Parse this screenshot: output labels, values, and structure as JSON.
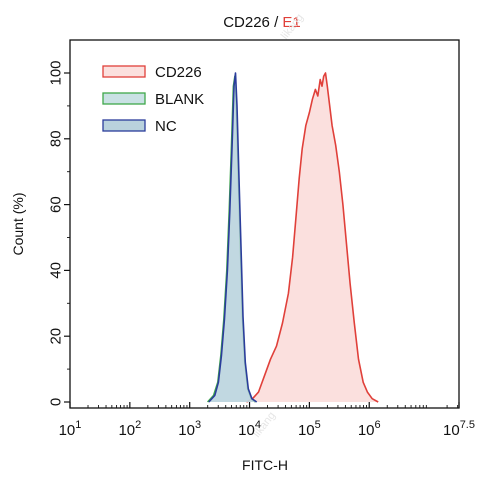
{
  "chart_data": {
    "type": "area",
    "title_main": "CD226",
    "title_sep": " / ",
    "title_clone": "E1",
    "xlabel": "FITC-H",
    "ylabel": "Count (%)",
    "x_scale": "log",
    "xlim": [
      10,
      31622.7766,
      31622776.6
    ],
    "xlim_exp": [
      1,
      7.5
    ],
    "ylim": [
      0,
      100
    ],
    "x_ticks": [
      {
        "base": "10",
        "exp": "1",
        "value": 1
      },
      {
        "base": "10",
        "exp": "2",
        "value": 2
      },
      {
        "base": "10",
        "exp": "3",
        "value": 3
      },
      {
        "base": "10",
        "exp": "4",
        "value": 4
      },
      {
        "base": "10",
        "exp": "5",
        "value": 5
      },
      {
        "base": "10",
        "exp": "6",
        "value": 6
      },
      {
        "base": "10",
        "exp": "7.5",
        "value": 7.5
      }
    ],
    "y_ticks": [
      "0",
      "20",
      "40",
      "60",
      "80",
      "100"
    ],
    "legend_position": "top-left",
    "series": [
      {
        "name": "CD226",
        "stroke": "#e0403a",
        "fill": "#fbe0de",
        "points": [
          [
            3.95,
            0
          ],
          [
            4.05,
            1
          ],
          [
            4.15,
            3
          ],
          [
            4.25,
            8
          ],
          [
            4.35,
            13
          ],
          [
            4.45,
            17
          ],
          [
            4.55,
            24
          ],
          [
            4.65,
            33
          ],
          [
            4.72,
            44
          ],
          [
            4.78,
            57
          ],
          [
            4.83,
            68
          ],
          [
            4.88,
            77
          ],
          [
            4.94,
            84
          ],
          [
            5.0,
            88
          ],
          [
            5.05,
            92
          ],
          [
            5.1,
            95
          ],
          [
            5.14,
            93
          ],
          [
            5.18,
            98
          ],
          [
            5.21,
            96
          ],
          [
            5.24,
            99
          ],
          [
            5.27,
            100
          ],
          [
            5.3,
            96
          ],
          [
            5.34,
            90
          ],
          [
            5.38,
            84
          ],
          [
            5.44,
            78
          ],
          [
            5.5,
            70
          ],
          [
            5.56,
            60
          ],
          [
            5.62,
            48
          ],
          [
            5.68,
            36
          ],
          [
            5.75,
            24
          ],
          [
            5.82,
            13
          ],
          [
            5.9,
            6
          ],
          [
            5.97,
            3
          ],
          [
            6.05,
            1
          ],
          [
            6.15,
            0
          ]
        ]
      },
      {
        "name": "BLANK",
        "stroke": "#3fa84a",
        "fill": "#c9e1e4",
        "points": [
          [
            3.3,
            0
          ],
          [
            3.4,
            2
          ],
          [
            3.47,
            6
          ],
          [
            3.52,
            14
          ],
          [
            3.57,
            25
          ],
          [
            3.62,
            40
          ],
          [
            3.66,
            58
          ],
          [
            3.7,
            79
          ],
          [
            3.73,
            96
          ],
          [
            3.755,
            99
          ],
          [
            3.78,
            90
          ],
          [
            3.81,
            70
          ],
          [
            3.85,
            45
          ],
          [
            3.88,
            26
          ],
          [
            3.92,
            12
          ],
          [
            3.97,
            4
          ],
          [
            4.03,
            1
          ],
          [
            4.1,
            0
          ]
        ]
      },
      {
        "name": "NC",
        "stroke": "#2b3d9c",
        "fill": "#b9d2dd",
        "points": [
          [
            3.32,
            0
          ],
          [
            3.42,
            2
          ],
          [
            3.48,
            6
          ],
          [
            3.53,
            14
          ],
          [
            3.58,
            25
          ],
          [
            3.63,
            40
          ],
          [
            3.67,
            58
          ],
          [
            3.71,
            79
          ],
          [
            3.74,
            96
          ],
          [
            3.765,
            100
          ],
          [
            3.79,
            90
          ],
          [
            3.82,
            70
          ],
          [
            3.86,
            45
          ],
          [
            3.89,
            26
          ],
          [
            3.93,
            12
          ],
          [
            3.98,
            4
          ],
          [
            4.04,
            1
          ],
          [
            4.12,
            0
          ]
        ]
      }
    ]
  },
  "watermarks": [
    "likang",
    "likang"
  ]
}
